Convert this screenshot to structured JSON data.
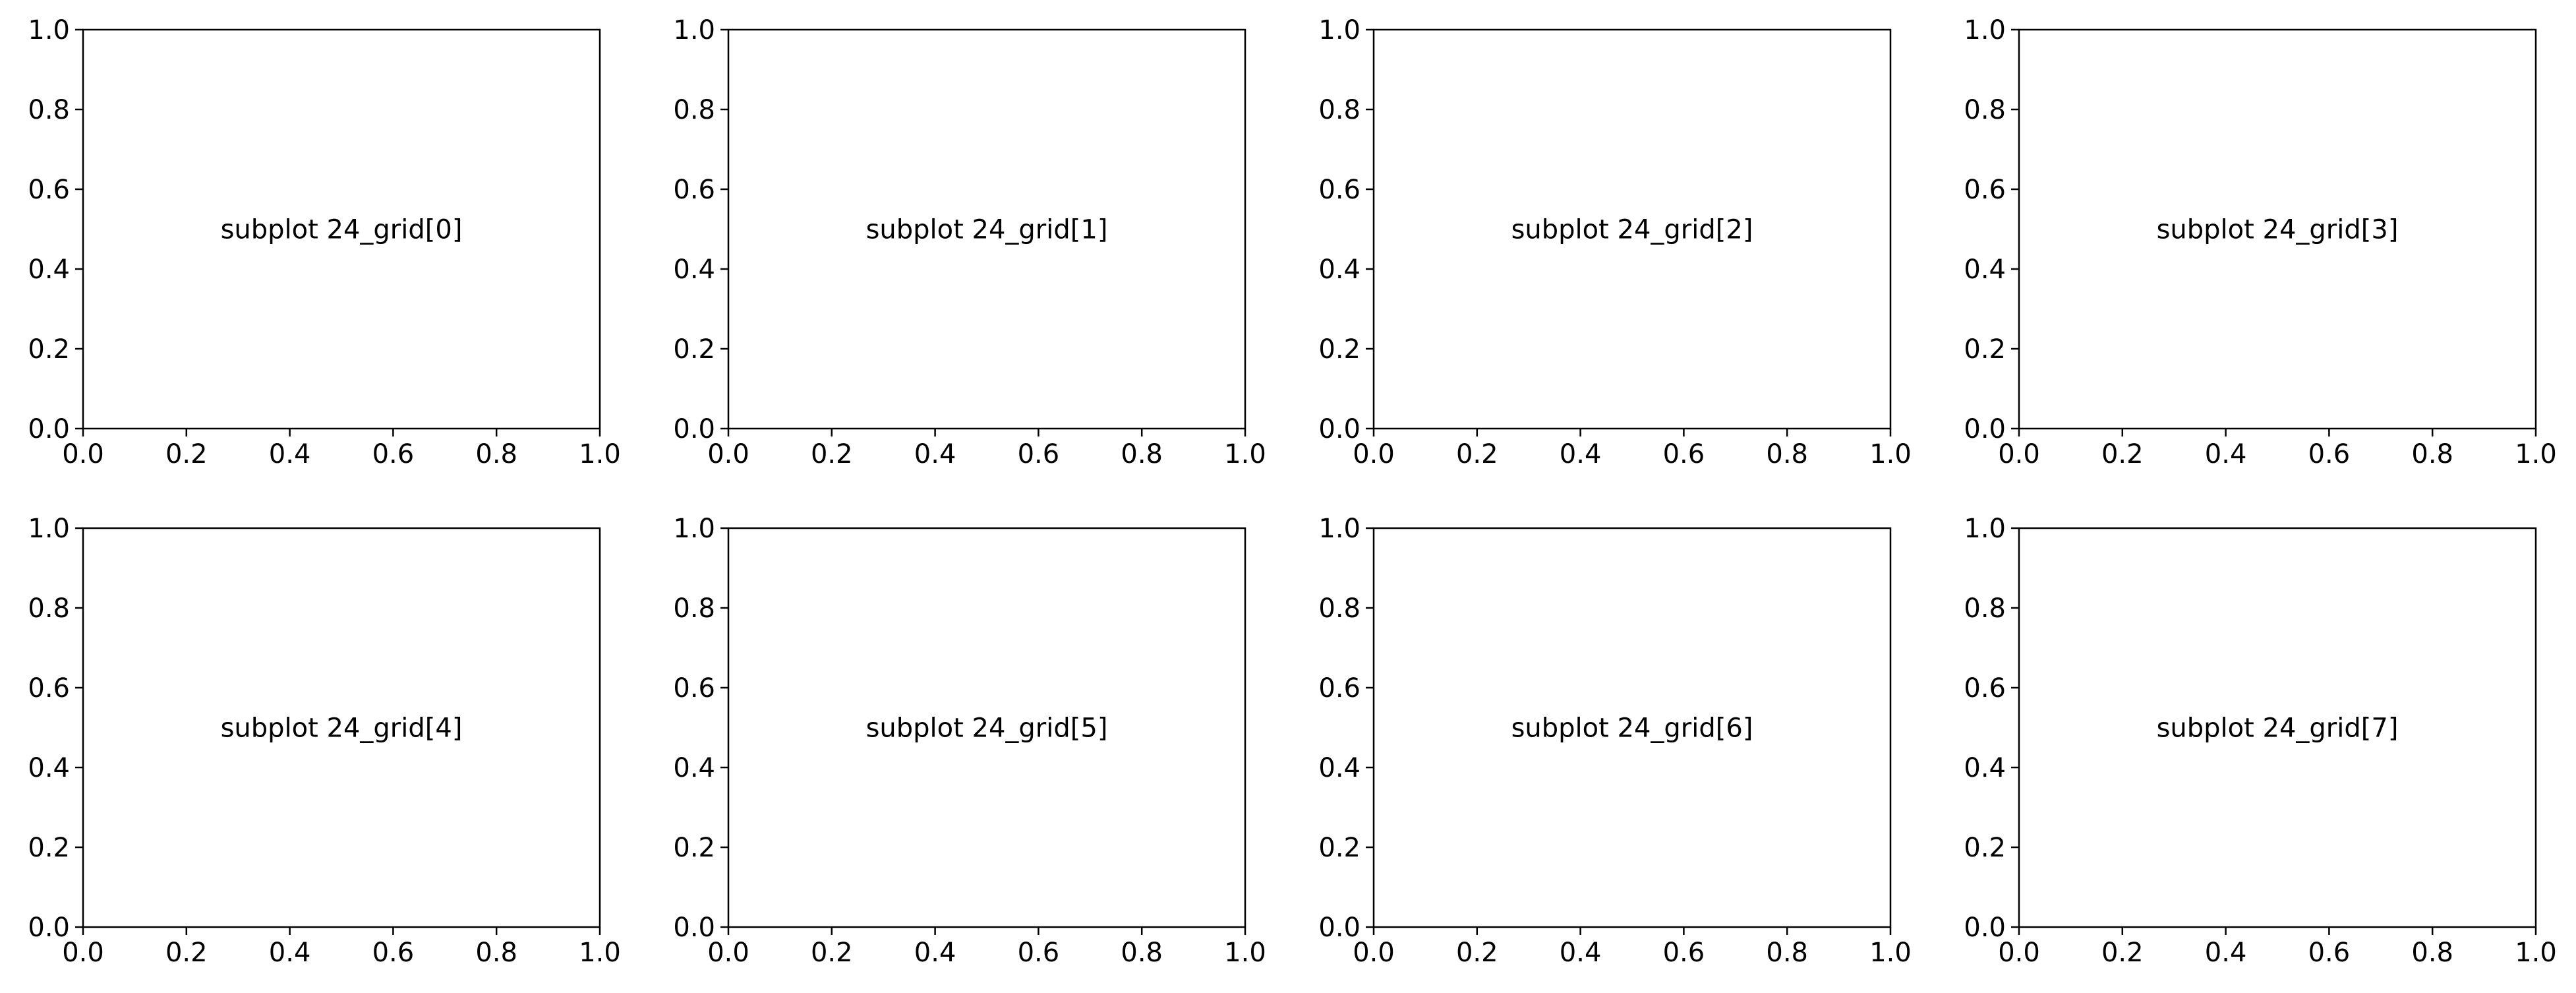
{
  "chart_data": [
    {
      "type": "scatter",
      "annotation": "subplot 24_grid[0]",
      "xlim": [
        0.0,
        1.0
      ],
      "ylim": [
        0.0,
        1.0
      ],
      "xticks": [
        "0.0",
        "0.2",
        "0.4",
        "0.6",
        "0.8",
        "1.0"
      ],
      "yticks": [
        "0.0",
        "0.2",
        "0.4",
        "0.6",
        "0.8",
        "1.0"
      ],
      "grid": false,
      "series": []
    },
    {
      "type": "scatter",
      "annotation": "subplot 24_grid[1]",
      "xlim": [
        0.0,
        1.0
      ],
      "ylim": [
        0.0,
        1.0
      ],
      "xticks": [
        "0.0",
        "0.2",
        "0.4",
        "0.6",
        "0.8",
        "1.0"
      ],
      "yticks": [
        "0.0",
        "0.2",
        "0.4",
        "0.6",
        "0.8",
        "1.0"
      ],
      "grid": false,
      "series": []
    },
    {
      "type": "scatter",
      "annotation": "subplot 24_grid[2]",
      "xlim": [
        0.0,
        1.0
      ],
      "ylim": [
        0.0,
        1.0
      ],
      "xticks": [
        "0.0",
        "0.2",
        "0.4",
        "0.6",
        "0.8",
        "1.0"
      ],
      "yticks": [
        "0.0",
        "0.2",
        "0.4",
        "0.6",
        "0.8",
        "1.0"
      ],
      "grid": false,
      "series": []
    },
    {
      "type": "scatter",
      "annotation": "subplot 24_grid[3]",
      "xlim": [
        0.0,
        1.0
      ],
      "ylim": [
        0.0,
        1.0
      ],
      "xticks": [
        "0.0",
        "0.2",
        "0.4",
        "0.6",
        "0.8",
        "1.0"
      ],
      "yticks": [
        "0.0",
        "0.2",
        "0.4",
        "0.6",
        "0.8",
        "1.0"
      ],
      "grid": false,
      "series": []
    },
    {
      "type": "scatter",
      "annotation": "subplot 24_grid[4]",
      "xlim": [
        0.0,
        1.0
      ],
      "ylim": [
        0.0,
        1.0
      ],
      "xticks": [
        "0.0",
        "0.2",
        "0.4",
        "0.6",
        "0.8",
        "1.0"
      ],
      "yticks": [
        "0.0",
        "0.2",
        "0.4",
        "0.6",
        "0.8",
        "1.0"
      ],
      "grid": false,
      "series": []
    },
    {
      "type": "scatter",
      "annotation": "subplot 24_grid[5]",
      "xlim": [
        0.0,
        1.0
      ],
      "ylim": [
        0.0,
        1.0
      ],
      "xticks": [
        "0.0",
        "0.2",
        "0.4",
        "0.6",
        "0.8",
        "1.0"
      ],
      "yticks": [
        "0.0",
        "0.2",
        "0.4",
        "0.6",
        "0.8",
        "1.0"
      ],
      "grid": false,
      "series": []
    },
    {
      "type": "scatter",
      "annotation": "subplot 24_grid[6]",
      "xlim": [
        0.0,
        1.0
      ],
      "ylim": [
        0.0,
        1.0
      ],
      "xticks": [
        "0.0",
        "0.2",
        "0.4",
        "0.6",
        "0.8",
        "1.0"
      ],
      "yticks": [
        "0.0",
        "0.2",
        "0.4",
        "0.6",
        "0.8",
        "1.0"
      ],
      "grid": false,
      "series": []
    },
    {
      "type": "scatter",
      "annotation": "subplot 24_grid[7]",
      "xlim": [
        0.0,
        1.0
      ],
      "ylim": [
        0.0,
        1.0
      ],
      "xticks": [
        "0.0",
        "0.2",
        "0.4",
        "0.6",
        "0.8",
        "1.0"
      ],
      "yticks": [
        "0.0",
        "0.2",
        "0.4",
        "0.6",
        "0.8",
        "1.0"
      ],
      "grid": false,
      "series": []
    }
  ]
}
